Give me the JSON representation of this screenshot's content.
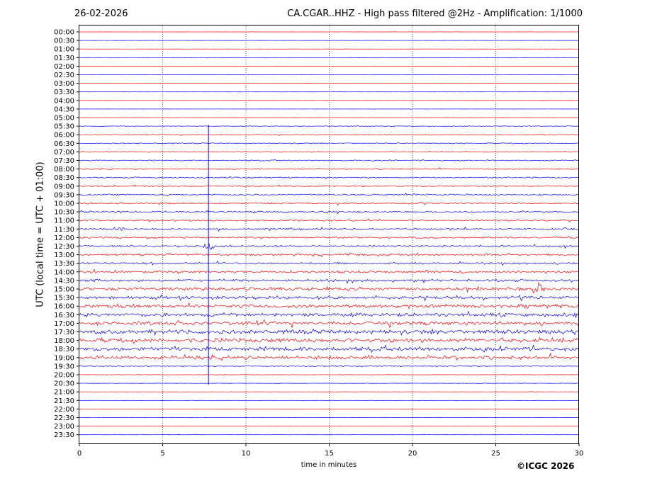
{
  "header": {
    "date": "26-02-2026",
    "title": "CA.CGAR..HHZ - High pass filtered @2Hz - Amplification: 1/1000"
  },
  "footer": {
    "copyright": "©ICGC 2026"
  },
  "chart_data": {
    "type": "line",
    "title": "CA.CGAR..HHZ - High pass filtered @2Hz - Amplification: 1/1000",
    "xlabel": "time in minutes",
    "ylabel": "UTC (local time = UTC + 01:00)",
    "xlim": [
      0,
      30
    ],
    "x_ticks": [
      0,
      5,
      10,
      15,
      20,
      25,
      30
    ],
    "vertical_gridlines": [
      5,
      10,
      15,
      20,
      25
    ],
    "grid": "vertical dotted",
    "row_labels": [
      "00:00",
      "00:30",
      "01:00",
      "01:30",
      "02:00",
      "02:30",
      "03:00",
      "03:30",
      "04:00",
      "04:30",
      "05:00",
      "05:30",
      "06:00",
      "06:30",
      "07:00",
      "07:30",
      "08:00",
      "08:30",
      "09:00",
      "09:30",
      "10:00",
      "10:30",
      "11:00",
      "11:30",
      "12:00",
      "12:30",
      "13:00",
      "13:30",
      "14:00",
      "14:30",
      "15:00",
      "15:30",
      "16:00",
      "16:30",
      "17:00",
      "17:30",
      "18:00",
      "18:30",
      "19:00",
      "19:30",
      "20:00",
      "20:30",
      "21:00",
      "21:30",
      "22:00",
      "22:30",
      "23:00",
      "23:30"
    ],
    "trace_colors": [
      "#ff0000",
      "#0000ff"
    ],
    "noise_level": [
      0.1,
      0.1,
      0.1,
      0.1,
      0.1,
      0.1,
      0.1,
      0.1,
      0.1,
      0.1,
      0.15,
      0.4,
      0.5,
      0.6,
      0.6,
      0.7,
      0.7,
      0.8,
      0.8,
      0.9,
      0.9,
      1.0,
      1.0,
      1.1,
      1.0,
      1.2,
      1.2,
      1.3,
      1.4,
      1.6,
      2.0,
      1.8,
      2.2,
      2.2,
      2.4,
      2.6,
      2.6,
      2.6,
      2.2,
      0.5,
      0.3,
      0.2,
      0.15,
      0.1,
      0.1,
      0.1,
      0.1,
      0.1
    ],
    "events": [
      {
        "row": "11:30",
        "time_min": 2.3,
        "amplitude": 4
      },
      {
        "row": "12:30",
        "time_min": 7.8,
        "amplitude": 6
      },
      {
        "row": "15:00",
        "time_min": 27.5,
        "amplitude": 9
      }
    ],
    "continuous_signal": {
      "time_min": 7.75,
      "from_row": "05:30",
      "to_row": "20:30"
    }
  }
}
